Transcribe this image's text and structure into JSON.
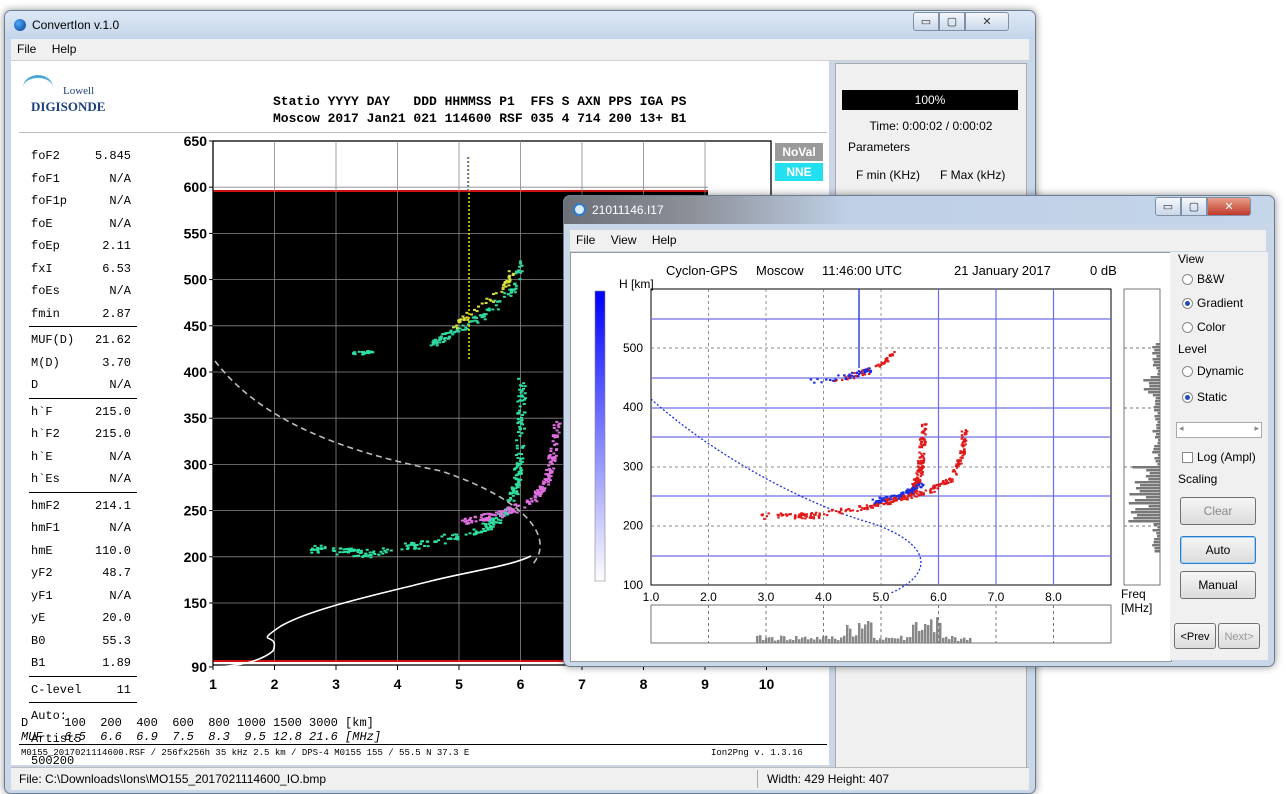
{
  "main_window": {
    "title": "ConvertIon v.1.0",
    "menu": [
      "File",
      "Help"
    ],
    "controls": [
      "▭",
      "▢",
      "✕"
    ],
    "logo": {
      "top": "Lowell",
      "bottom": "DIGISONDE"
    },
    "header_line1": "Statio YYYY DAY   DDD HHMMSS P1  FFS S AXN PPS IGA PS",
    "header_line2": "Moscow 2017 Jan21 021 114600 RSF 035 4 714 200 13+ B1",
    "params_group1": [
      {
        "name": "foF2",
        "value": "5.845"
      },
      {
        "name": "foF1",
        "value": "N/A"
      },
      {
        "name": "foF1p",
        "value": "N/A"
      },
      {
        "name": "foE",
        "value": "N/A"
      },
      {
        "name": "foEp",
        "value": "2.11"
      },
      {
        "name": "fxI",
        "value": "6.53"
      },
      {
        "name": "foEs",
        "value": "N/A"
      },
      {
        "name": "fmin",
        "value": "2.87"
      }
    ],
    "params_group2": [
      {
        "name": "MUF(D)",
        "value": "21.62"
      },
      {
        "name": "M(D)",
        "value": "3.70"
      },
      {
        "name": "D",
        "value": "N/A"
      }
    ],
    "params_group3": [
      {
        "name": "h`F",
        "value": "215.0"
      },
      {
        "name": "h`F2",
        "value": "215.0"
      },
      {
        "name": "h`E",
        "value": "N/A"
      },
      {
        "name": "h`Es",
        "value": "N/A"
      }
    ],
    "params_group4": [
      {
        "name": "hmF2",
        "value": "214.1"
      },
      {
        "name": "hmF1",
        "value": "N/A"
      },
      {
        "name": "hmE",
        "value": "110.0"
      },
      {
        "name": "yF2",
        "value": "48.7"
      },
      {
        "name": "yF1",
        "value": "N/A"
      },
      {
        "name": "yE",
        "value": "20.0"
      },
      {
        "name": "B0",
        "value": "55.3"
      },
      {
        "name": "B1",
        "value": "1.89"
      }
    ],
    "clevel": {
      "name": "C-level",
      "value": "11"
    },
    "auto_lines": [
      "Auto:",
      "Artist5",
      "500200"
    ],
    "legend_badges": [
      {
        "label": "NoVal",
        "color": "#9a9a9a"
      },
      {
        "label": "NNE",
        "color": "#22e0f0"
      }
    ],
    "y_ticks": [
      "650",
      "600",
      "550",
      "500",
      "450",
      "400",
      "350",
      "300",
      "250",
      "200",
      "150",
      "90"
    ],
    "x_ticks": [
      "1",
      "2",
      "3",
      "4",
      "5",
      "6",
      "7",
      "8",
      "9",
      "10"
    ],
    "muf_table_line1": "D     100  200  400  600  800 1000 1500 3000 [km]",
    "muf_table_line2": "MUF   6.5  6.6  6.9  7.5  8.3  9.5 12.8 21.6 [MHz]",
    "footer_info": "M0155_2017021114600.RSF / 256fx256h 35 kHz 2.5 km / DPS-4 M0155 155 / 55.5 N 37.3 E",
    "footer_version": "Ion2Png v. 1.3.16",
    "status_file": "File: C:\\Downloads\\Ions\\MO155_2017021114600_IO.bmp",
    "status_size": "Width: 429 Height: 407",
    "side_panel": {
      "progress_text": "100%",
      "progress_value": 1.0,
      "time_text": "Time: 0:00:02 / 0:00:02",
      "group_label": "Parameters",
      "fmin_label": "F min (KHz)",
      "fmax_label": "F Max (kHz)"
    }
  },
  "viewer_window": {
    "title": "21011146.I17",
    "menu": [
      "File",
      "View",
      "Help"
    ],
    "controls": [
      "▭",
      "▢",
      "✕"
    ],
    "plot_header": [
      "Cyclon-GPS",
      "Moscow",
      "11:46:00 UTC",
      "21 January 2017",
      "0 dB"
    ],
    "y_axis_label": "H [km]",
    "x_axis_label": "Freq [MHz]",
    "y_ticks": [
      "500",
      "400",
      "300",
      "200",
      "100"
    ],
    "x_ticks": [
      "1.0",
      "2.0",
      "3.0",
      "4.0",
      "5.0",
      "6.0",
      "7.0",
      "8.0"
    ],
    "view_group": "View",
    "view_options": [
      {
        "label": "B&W",
        "selected": false
      },
      {
        "label": "Gradient",
        "selected": true
      },
      {
        "label": "Color",
        "selected": false
      }
    ],
    "level_group": "Level",
    "level_options": [
      {
        "label": "Dynamic",
        "selected": false
      },
      {
        "label": "Static",
        "selected": true
      }
    ],
    "log_checkbox": "Log (Ampl)",
    "log_checked": false,
    "scaling_group": "Scaling",
    "buttons": {
      "clear": "Clear",
      "auto": "Auto",
      "manual": "Manual",
      "prev": "<Prev",
      "next": "Next>"
    }
  },
  "colors": {
    "ionogram_bg": "#000000",
    "trace_green": "#2ee0a0",
    "trace_magenta": "#e070e0",
    "viewer_trace_red": "#e01818",
    "viewer_trace_blue": "#1a2ee0",
    "grid_blue": "#6e6ee8"
  }
}
